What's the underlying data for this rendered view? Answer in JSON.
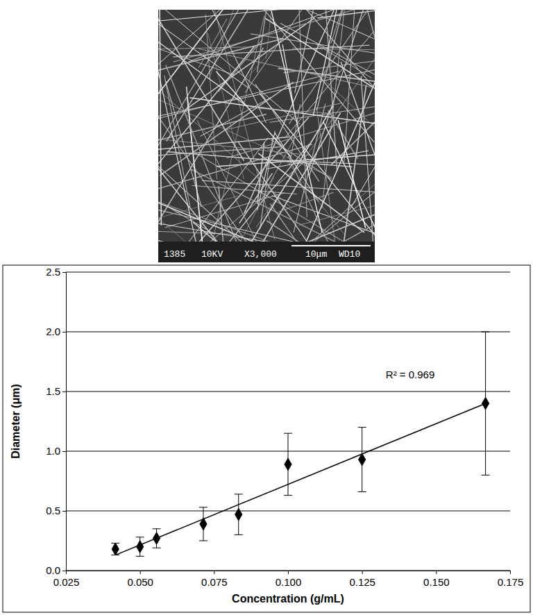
{
  "image": {
    "caption": [
      "1385",
      "10KV",
      "X3,000",
      "10μm",
      "WD10"
    ]
  },
  "chart_data": {
    "type": "scatter",
    "x_label": "Concentration (g/mL)",
    "y_label": "Diameter (μm)",
    "annotations": [
      "R² = 0.969"
    ],
    "xlim": [
      0.025,
      0.175
    ],
    "xticks": [
      0.025,
      {
        "value": 0.05,
        "label": "0.050"
      },
      0.075,
      {
        "value": 0.1,
        "label": "0.100"
      },
      0.125,
      {
        "value": 0.15,
        "label": "0.150"
      },
      0.175
    ],
    "ylim": [
      0,
      2.5
    ],
    "yticks": [
      {
        "value": 0,
        "label": "0.0"
      },
      {
        "value": 0.5,
        "label": "0.5"
      },
      {
        "value": 1,
        "label": "1.0"
      },
      {
        "value": 1.5,
        "label": "1.5"
      },
      {
        "value": 2,
        "label": "2.0"
      },
      {
        "value": 2.5,
        "label": "2.5"
      }
    ],
    "grid": true,
    "series": [
      {
        "type": "scatter",
        "marker": "diamond",
        "color": "#000000",
        "x": [
          0.0417,
          0.05,
          0.0556,
          0.0714,
          0.0833,
          0.1,
          0.125,
          0.1667
        ],
        "values": [
          0.18,
          0.2,
          0.27,
          0.39,
          0.47,
          0.89,
          0.93,
          1.4
        ],
        "error": [
          0.05,
          0.08,
          0.08,
          0.14,
          0.17,
          0.26,
          0.27,
          0.6
        ]
      },
      {
        "type": "line",
        "line_style": "solid",
        "color": "#000000",
        "x": [
          0.0417,
          0.1667
        ],
        "values": [
          0.13,
          1.4
        ]
      }
    ]
  }
}
